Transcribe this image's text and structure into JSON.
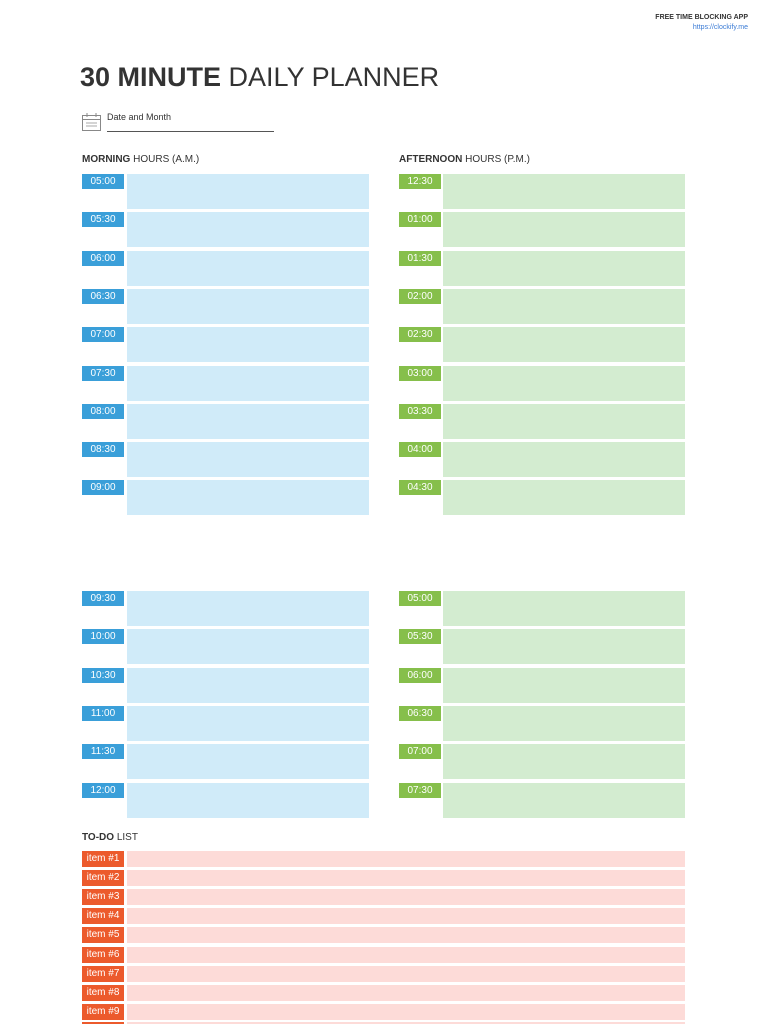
{
  "header": {
    "app_name": "FREE TIME BLOCKING APP",
    "url": "https://clockify.me"
  },
  "title": {
    "bold": "30 MINUTE",
    "rest": "DAILY PLANNER"
  },
  "date_label": "Date and Month",
  "morning": {
    "heading_bold": "MORNING",
    "heading_rest": "HOURS (A.M.)",
    "slots": [
      "05:00",
      "05:30",
      "06:00",
      "06:30",
      "07:00",
      "07:30",
      "08:00",
      "08:30",
      "09:00",
      "09:30",
      "10:00",
      "10:30",
      "11:00",
      "11:30",
      "12:00"
    ]
  },
  "afternoon": {
    "heading_bold": "AFTERNOON",
    "heading_rest": "HOURS (P.M.)",
    "slots": [
      "12:30",
      "01:00",
      "01:30",
      "02:00",
      "02:30",
      "03:00",
      "03:30",
      "04:00",
      "04:30",
      "05:00",
      "05:30",
      "06:00",
      "06:30",
      "07:00",
      "07:30"
    ]
  },
  "todo": {
    "heading_bold": "TO-DO",
    "heading_rest": "LIST",
    "items": [
      "item #1",
      "item #2",
      "item #3",
      "item #4",
      "item #5",
      "item #6",
      "item #7",
      "item #8",
      "item #9"
    ]
  }
}
